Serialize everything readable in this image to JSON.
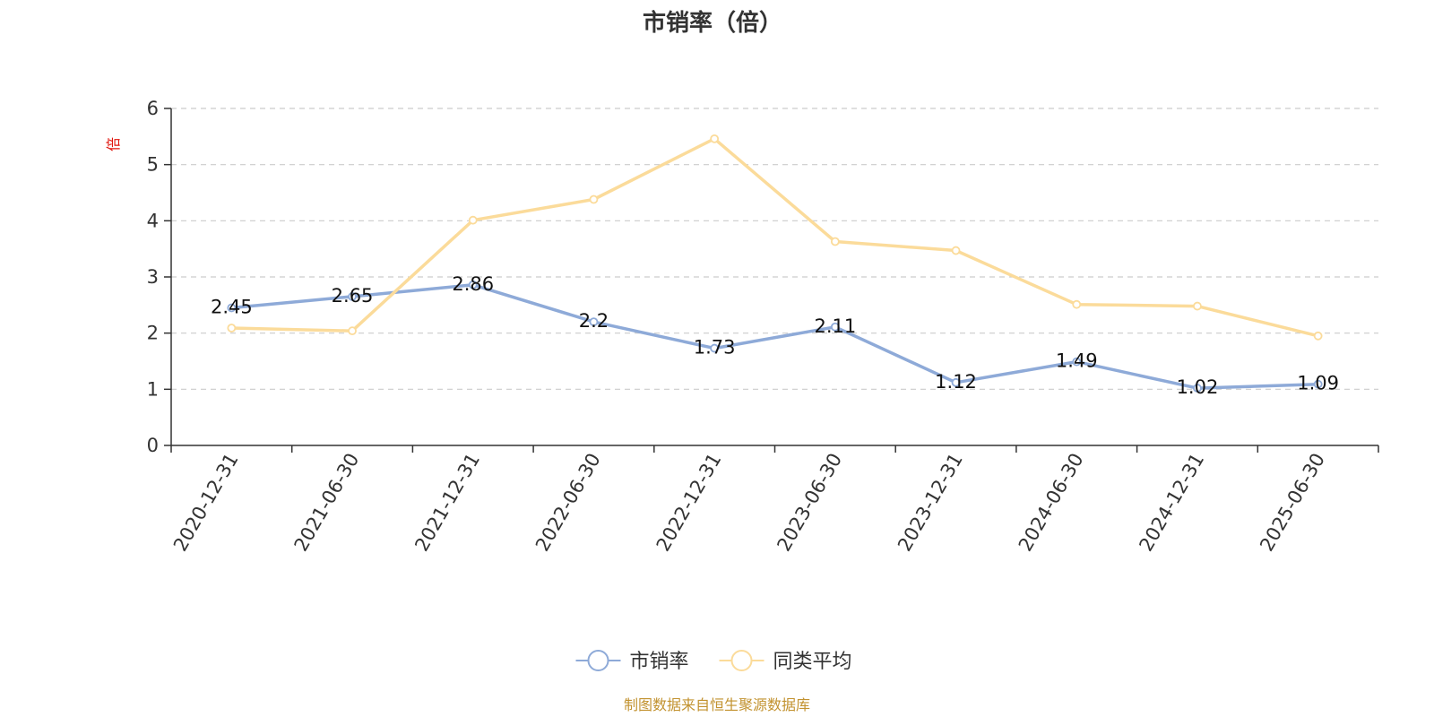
{
  "chart_data": {
    "type": "line",
    "title": "市销率（倍）",
    "ylabel": "倍",
    "xlabel": "",
    "ylim": [
      0,
      6
    ],
    "yticks": [
      0,
      1,
      2,
      3,
      4,
      5,
      6
    ],
    "grid": true,
    "legend_position": "bottom",
    "categories": [
      "2020-12-31",
      "2021-06-30",
      "2021-12-31",
      "2022-06-30",
      "2022-12-31",
      "2023-06-30",
      "2023-12-31",
      "2024-06-30",
      "2024-12-31",
      "2025-06-30"
    ],
    "series": [
      {
        "name": "市销率",
        "color": "#8eaad8",
        "values": [
          2.45,
          2.65,
          2.86,
          2.2,
          1.73,
          2.11,
          1.12,
          1.49,
          1.02,
          1.09
        ],
        "show_labels": true
      },
      {
        "name": "同类平均",
        "color": "#fbdb9a",
        "values": [
          2.09,
          2.04,
          4.01,
          4.38,
          5.46,
          3.63,
          3.47,
          2.51,
          2.48,
          1.95
        ],
        "show_labels": false
      }
    ],
    "source": "制图数据来自恒生聚源数据库"
  }
}
